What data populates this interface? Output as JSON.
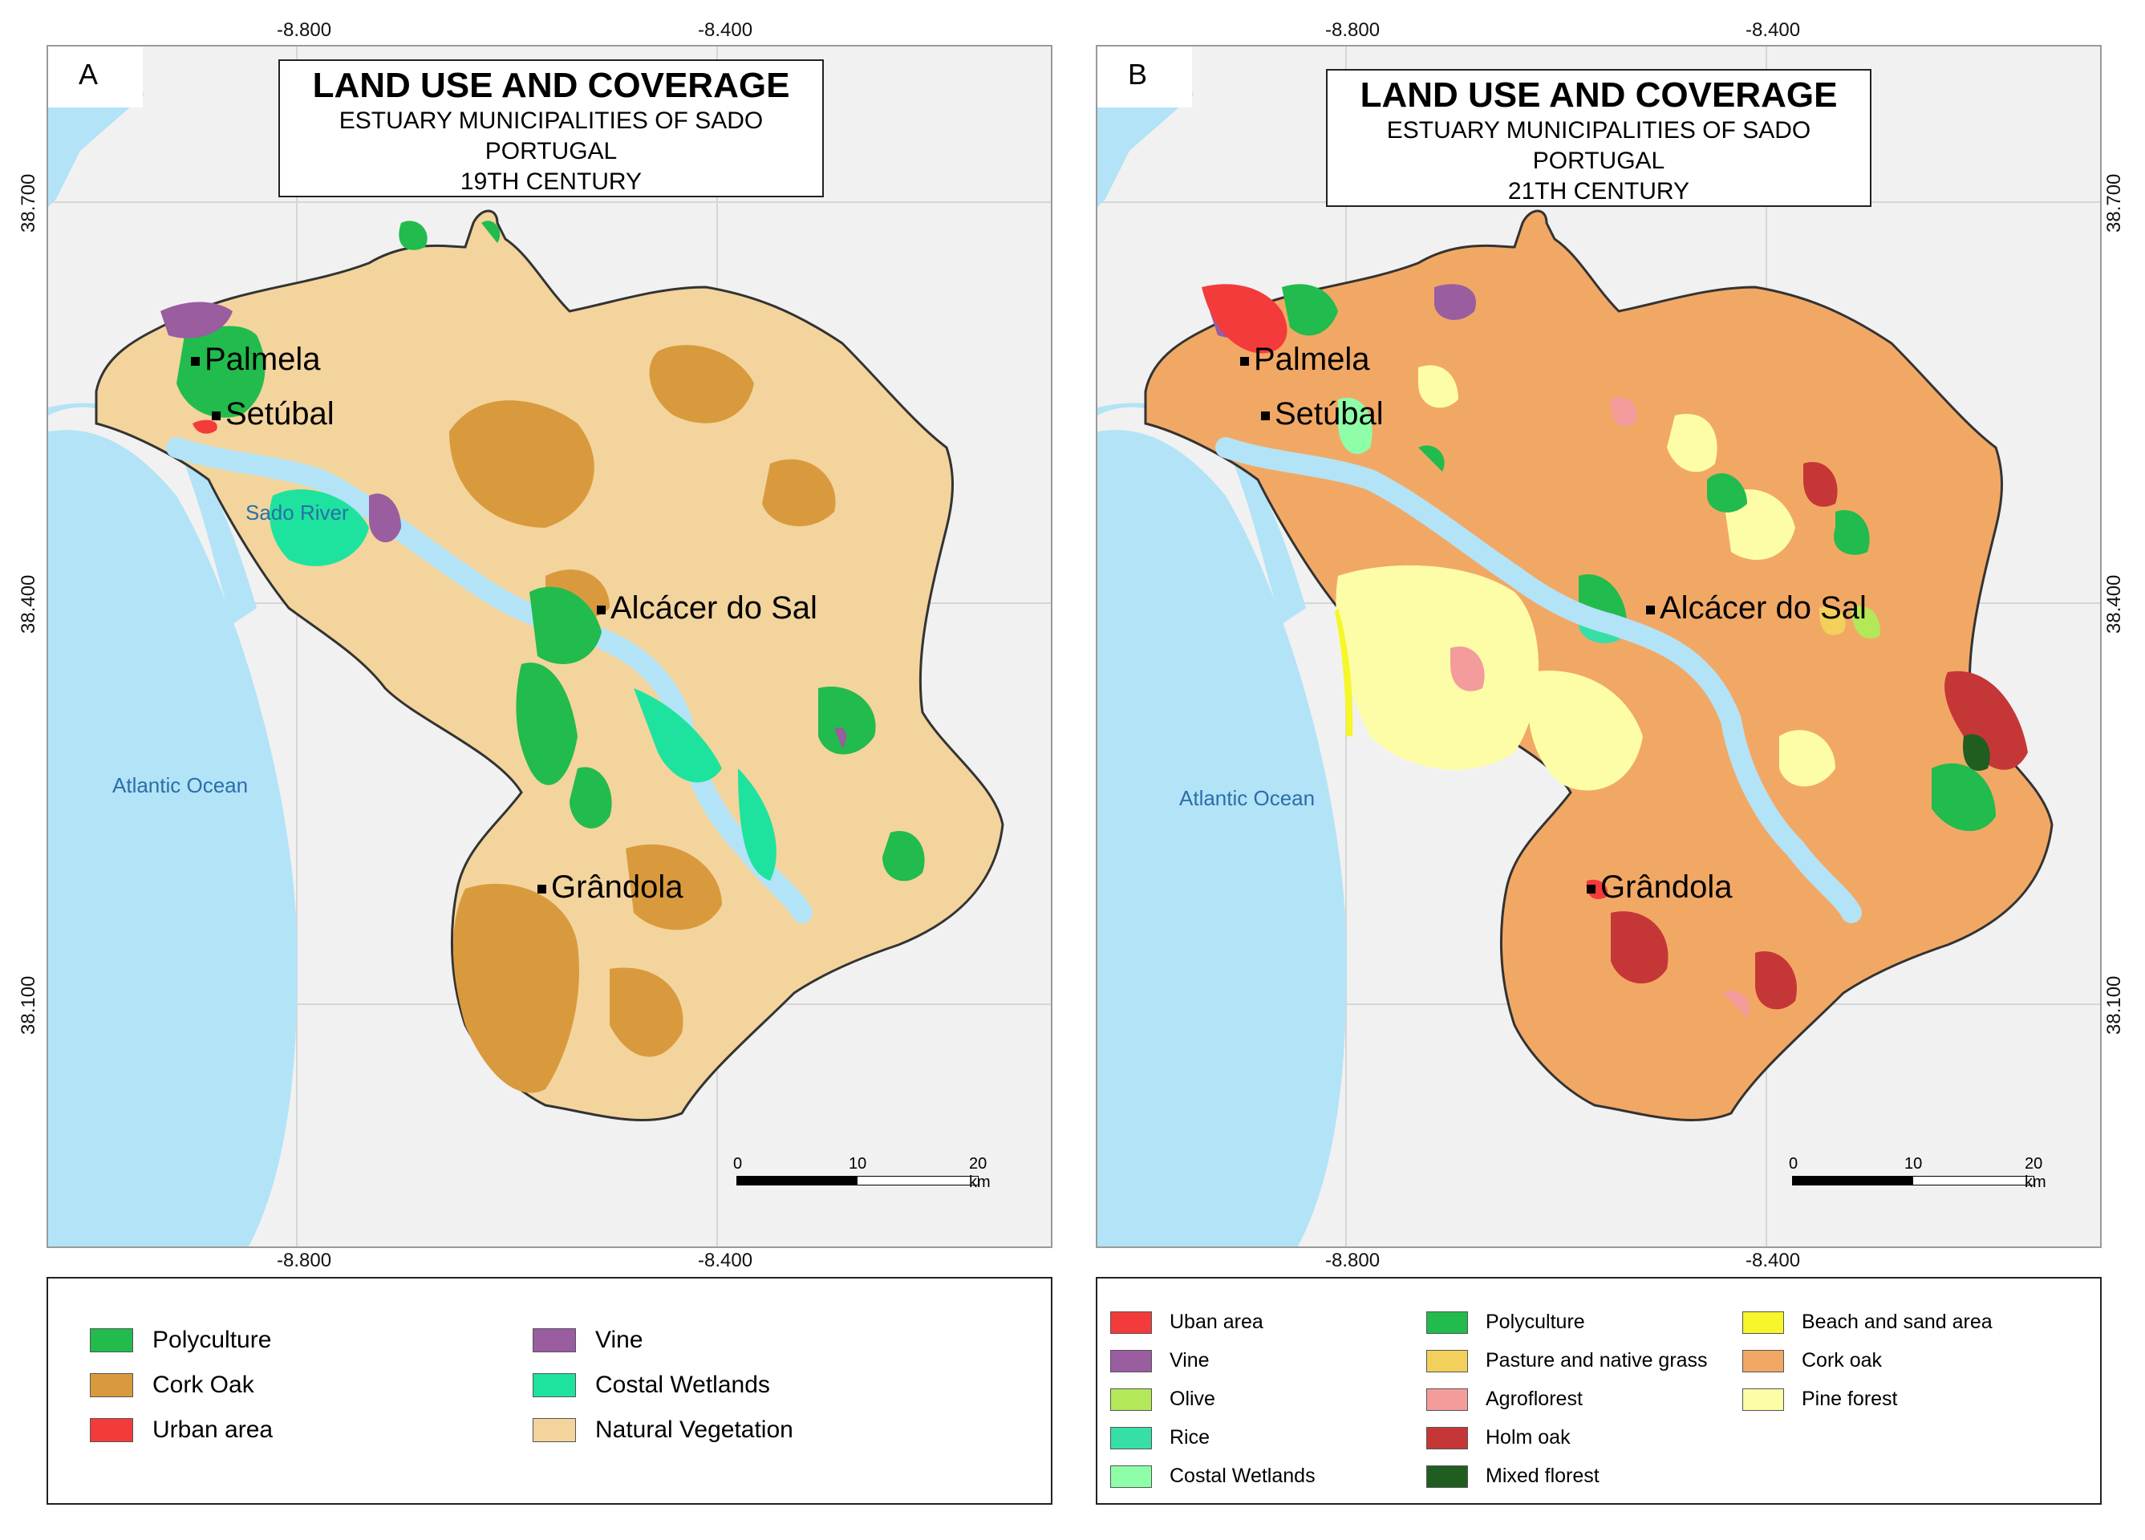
{
  "panels": {
    "a": {
      "letter": "A",
      "title": {
        "main": "LAND USE AND COVERAGE",
        "line1": "ESTUARY MUNICIPALITIES OF SADO",
        "line2": "PORTUGAL",
        "line3": "19TH CENTURY"
      },
      "coords": {
        "top_left": "-8.800",
        "top_right": "-8.400",
        "bottom_left": "-8.800",
        "bottom_right": "-8.400",
        "left_top": "38.700",
        "left_mid": "38.400",
        "left_bot": "38.100"
      },
      "labels": {
        "ocean": "Atlantic Ocean",
        "river": "Sado River"
      },
      "cities": [
        "Palmela",
        "Setúbal",
        "Alcácer do Sal",
        "Grândola"
      ],
      "scale": {
        "l0": "0",
        "l1": "10",
        "l2": "20 km"
      },
      "legend": [
        {
          "label": "Polyculture",
          "color": "#22bb4d"
        },
        {
          "label": "Cork Oak",
          "color": "#d99a3e"
        },
        {
          "label": "Urban area",
          "color": "#f33b3b"
        },
        {
          "label": "Vine",
          "color": "#995da0"
        },
        {
          "label": "Costal Wetlands",
          "color": "#1ee39f"
        },
        {
          "label": "Natural Vegetation",
          "color": "#f3d49c"
        }
      ]
    },
    "b": {
      "letter": "B",
      "title": {
        "main": "LAND USE AND COVERAGE",
        "line1": "ESTUARY MUNICIPALITIES OF SADO",
        "line2": "PORTUGAL",
        "line3": "21TH CENTURY"
      },
      "coords": {
        "top_left": "-8.800",
        "top_right": "-8.400",
        "bottom_left": "-8.800",
        "bottom_right": "-8.400",
        "right_top": "38.700",
        "right_mid": "38.400",
        "right_bot": "38.100"
      },
      "labels": {
        "ocean": "Atlantic Ocean"
      },
      "cities": [
        "Palmela",
        "Setúbal",
        "Alcácer do Sal",
        "Grândola"
      ],
      "scale": {
        "l0": "0",
        "l1": "10",
        "l2": "20 km"
      },
      "legend": [
        {
          "label": "Uban area",
          "color": "#f33b3b"
        },
        {
          "label": "Vine",
          "color": "#995da0"
        },
        {
          "label": "Olive",
          "color": "#b3e859"
        },
        {
          "label": "Rice",
          "color": "#35dfa6"
        },
        {
          "label": "Costal Wetlands",
          "color": "#8effa8"
        },
        {
          "label": "Polyculture",
          "color": "#22bb4d"
        },
        {
          "label": "Pasture and native grass",
          "color": "#f2d05b"
        },
        {
          "label": "Agroflorest",
          "color": "#f49c9c"
        },
        {
          "label": "Holm oak",
          "color": "#c53737"
        },
        {
          "label": "Mixed florest",
          "color": "#1f5e20"
        },
        {
          "label": "Beach and sand area",
          "color": "#f6f62a"
        },
        {
          "label": "Cork oak",
          "color": "#f2a865"
        },
        {
          "label": "Pine forest",
          "color": "#fdfda8"
        }
      ]
    }
  },
  "colors": {
    "water": "#b3e3f7",
    "border": "#333333"
  }
}
